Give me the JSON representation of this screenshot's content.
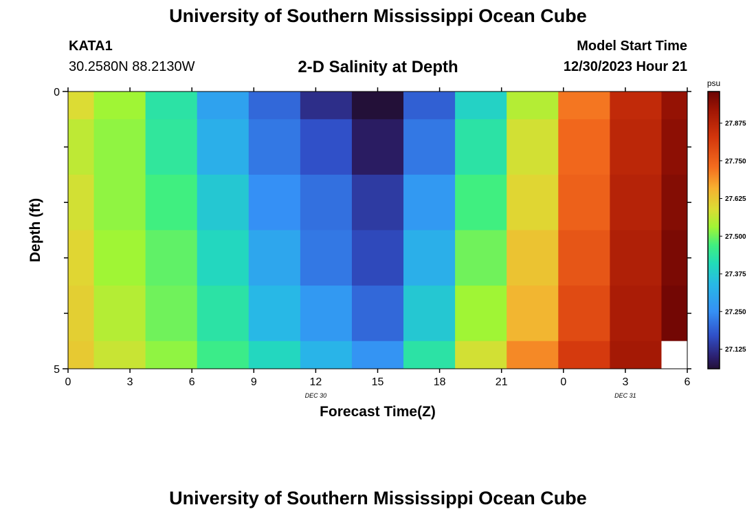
{
  "header": {
    "title": "University of Southern Mississippi Ocean Cube",
    "station_id": "KATA1",
    "coordinates": "30.2580N  88.2130W",
    "subtitle": "2-D Salinity at Depth",
    "model_start_label": "Model Start Time",
    "model_start_value": "12/30/2023 Hour 21"
  },
  "footer": {
    "title": "University of Southern Mississippi Ocean Cube"
  },
  "chart_data": {
    "type": "heatmap",
    "xlabel": "Forecast Time(Z)",
    "ylabel": "Depth (ft)",
    "x_ticks": [
      "0",
      "3",
      "6",
      "9",
      "12",
      "15",
      "18",
      "21",
      "0",
      "3",
      "6"
    ],
    "date_labels": [
      {
        "text": "DEC 30",
        "at_tick": 4
      },
      {
        "text": "DEC 31",
        "at_tick": 9
      }
    ],
    "y_ticks": [
      "0",
      "5"
    ],
    "ylim": [
      0,
      5
    ],
    "colorbar": {
      "unit": "psu",
      "ticks": [
        "27.875",
        "27.750",
        "27.625",
        "27.500",
        "27.375",
        "27.250",
        "27.125"
      ],
      "range": [
        27.06,
        27.98
      ],
      "stops": [
        {
          "v": 27.06,
          "c": "#231038"
        },
        {
          "v": 27.1,
          "c": "#2c2070"
        },
        {
          "v": 27.17,
          "c": "#3050c8"
        },
        {
          "v": 27.25,
          "c": "#3590f5"
        },
        {
          "v": 27.34,
          "c": "#28b8e6"
        },
        {
          "v": 27.41,
          "c": "#22dcb8"
        },
        {
          "v": 27.47,
          "c": "#40ef80"
        },
        {
          "v": 27.53,
          "c": "#a0f535"
        },
        {
          "v": 27.59,
          "c": "#dcdc34"
        },
        {
          "v": 27.66,
          "c": "#f6b030"
        },
        {
          "v": 27.73,
          "c": "#f46c1e"
        },
        {
          "v": 27.83,
          "c": "#d2350c"
        },
        {
          "v": 27.92,
          "c": "#9e1504"
        },
        {
          "v": 27.98,
          "c": "#6a0404"
        }
      ]
    },
    "column_edges_hours": [
      0,
      1.25,
      3.75,
      6.25,
      8.75,
      11.25,
      13.75,
      16.25,
      18.75,
      21.25,
      23.75,
      26.25,
      28.75,
      30
    ],
    "row_edges_ft": [
      0,
      0.5,
      1.5,
      2.5,
      3.5,
      4.5,
      5
    ],
    "values": [
      [
        27.59,
        27.53,
        27.43,
        27.29,
        27.2,
        27.12,
        27.0,
        27.19,
        27.39,
        27.55,
        27.72,
        27.86,
        27.93
      ],
      [
        27.56,
        27.52,
        27.44,
        27.32,
        27.22,
        27.17,
        27.09,
        27.22,
        27.43,
        27.58,
        27.74,
        27.87,
        27.94
      ],
      [
        27.58,
        27.52,
        27.47,
        27.37,
        27.25,
        27.21,
        27.14,
        27.27,
        27.47,
        27.6,
        27.75,
        27.88,
        27.95
      ],
      [
        27.6,
        27.53,
        27.49,
        27.4,
        27.3,
        27.22,
        27.16,
        27.32,
        27.5,
        27.63,
        27.77,
        27.89,
        27.96
      ],
      [
        27.61,
        27.55,
        27.5,
        27.43,
        27.34,
        27.27,
        27.2,
        27.37,
        27.53,
        27.65,
        27.79,
        27.9,
        27.97
      ],
      [
        27.62,
        27.57,
        27.52,
        27.46,
        27.4,
        27.33,
        27.26,
        27.43,
        27.58,
        27.7,
        27.82,
        27.91,
        null
      ]
    ]
  }
}
